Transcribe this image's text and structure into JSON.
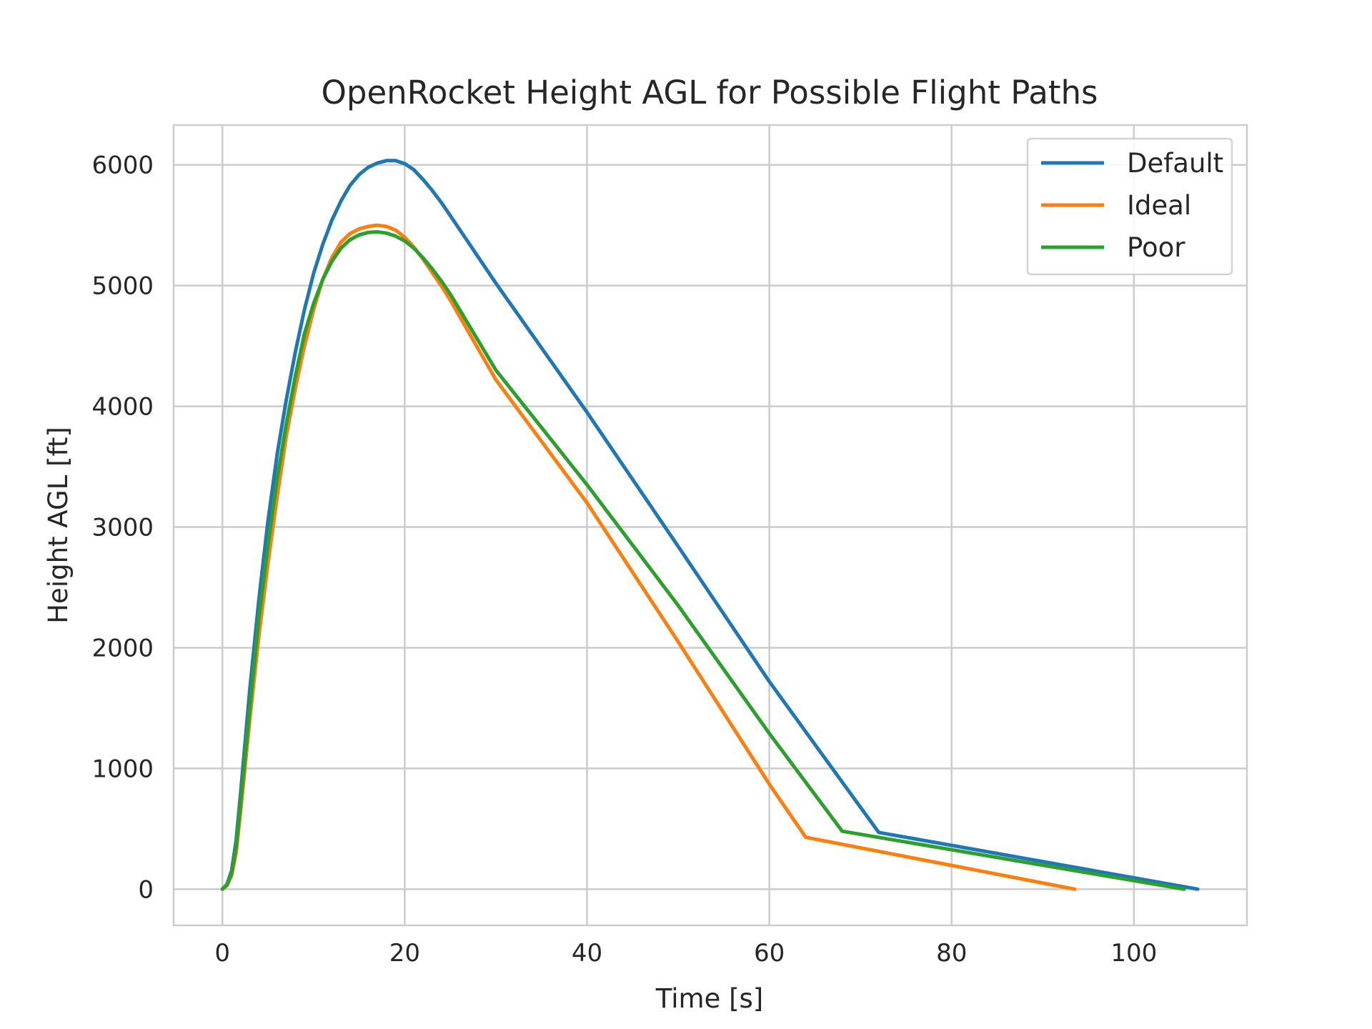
{
  "chart_data": {
    "type": "line",
    "title": "OpenRocket Height AGL for Possible Flight Paths",
    "xlabel": "Time [s]",
    "ylabel": "Height AGL [ft]",
    "xlim": [
      -5.35,
      112.4
    ],
    "ylim": [
      -300,
      6330
    ],
    "xticks": [
      0,
      20,
      40,
      60,
      80,
      100
    ],
    "yticks": [
      0,
      1000,
      2000,
      3000,
      4000,
      5000,
      6000
    ],
    "xtick_labels": [
      "0",
      "20",
      "40",
      "60",
      "80",
      "100"
    ],
    "ytick_labels": [
      "0",
      "1000",
      "2000",
      "3000",
      "4000",
      "5000",
      "6000"
    ],
    "grid": true,
    "legend_position": "top-right",
    "series": [
      {
        "name": "Default",
        "color": "#1f77b4",
        "points": [
          [
            0,
            0
          ],
          [
            0.5,
            40
          ],
          [
            1,
            150
          ],
          [
            1.5,
            400
          ],
          [
            2,
            800
          ],
          [
            3,
            1650
          ],
          [
            4,
            2400
          ],
          [
            5,
            3050
          ],
          [
            6,
            3600
          ],
          [
            7,
            4050
          ],
          [
            8,
            4450
          ],
          [
            9,
            4800
          ],
          [
            10,
            5100
          ],
          [
            11,
            5340
          ],
          [
            12,
            5540
          ],
          [
            13,
            5700
          ],
          [
            14,
            5830
          ],
          [
            15,
            5920
          ],
          [
            16,
            5980
          ],
          [
            17,
            6015
          ],
          [
            18,
            6035
          ],
          [
            19,
            6035
          ],
          [
            20,
            6010
          ],
          [
            21,
            5960
          ],
          [
            22,
            5880
          ],
          [
            23,
            5790
          ],
          [
            24,
            5690
          ],
          [
            25,
            5580
          ],
          [
            30,
            5020
          ],
          [
            40,
            3950
          ],
          [
            50,
            2840
          ],
          [
            60,
            1720
          ],
          [
            72,
            470
          ],
          [
            107,
            0
          ]
        ]
      },
      {
        "name": "Ideal",
        "color": "#ff7f0e",
        "points": [
          [
            0,
            0
          ],
          [
            0.5,
            30
          ],
          [
            1,
            110
          ],
          [
            1.5,
            300
          ],
          [
            2,
            650
          ],
          [
            3,
            1400
          ],
          [
            4,
            2100
          ],
          [
            5,
            2700
          ],
          [
            6,
            3250
          ],
          [
            7,
            3750
          ],
          [
            8,
            4150
          ],
          [
            9,
            4500
          ],
          [
            10,
            4800
          ],
          [
            11,
            5050
          ],
          [
            12,
            5230
          ],
          [
            13,
            5360
          ],
          [
            14,
            5430
          ],
          [
            15,
            5470
          ],
          [
            16,
            5490
          ],
          [
            17,
            5500
          ],
          [
            18,
            5490
          ],
          [
            19,
            5460
          ],
          [
            20,
            5400
          ],
          [
            21,
            5320
          ],
          [
            22,
            5220
          ],
          [
            23,
            5110
          ],
          [
            24,
            5000
          ],
          [
            25,
            4880
          ],
          [
            30,
            4220
          ],
          [
            40,
            3200
          ],
          [
            50,
            2050
          ],
          [
            60,
            870
          ],
          [
            64,
            430
          ],
          [
            93.5,
            0
          ]
        ]
      },
      {
        "name": "Poor",
        "color": "#2ca02c",
        "points": [
          [
            0,
            0
          ],
          [
            0.5,
            35
          ],
          [
            1,
            130
          ],
          [
            1.5,
            350
          ],
          [
            2,
            720
          ],
          [
            3,
            1500
          ],
          [
            4,
            2250
          ],
          [
            5,
            2850
          ],
          [
            6,
            3400
          ],
          [
            7,
            3850
          ],
          [
            8,
            4250
          ],
          [
            9,
            4600
          ],
          [
            10,
            4850
          ],
          [
            11,
            5050
          ],
          [
            12,
            5200
          ],
          [
            13,
            5310
          ],
          [
            14,
            5380
          ],
          [
            15,
            5420
          ],
          [
            16,
            5440
          ],
          [
            17,
            5445
          ],
          [
            18,
            5435
          ],
          [
            19,
            5410
          ],
          [
            20,
            5370
          ],
          [
            21,
            5310
          ],
          [
            22,
            5230
          ],
          [
            23,
            5140
          ],
          [
            24,
            5040
          ],
          [
            25,
            4930
          ],
          [
            30,
            4300
          ],
          [
            40,
            3350
          ],
          [
            50,
            2350
          ],
          [
            60,
            1290
          ],
          [
            68,
            480
          ],
          [
            105.5,
            0
          ]
        ]
      }
    ]
  }
}
